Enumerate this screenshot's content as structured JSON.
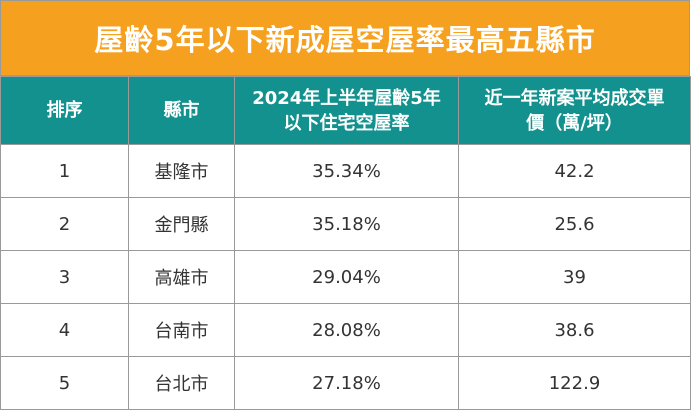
{
  "title": "屋齡5年以下新成屋空屋率最高五縣市",
  "headers": {
    "rank": "排序",
    "county": "縣市",
    "vacancy_line1": "2024年上半年屋齡5年",
    "vacancy_line2": "以下住宅空屋率",
    "price_line1": "近一年新案平均成交單",
    "price_line2": "價（萬/坪）"
  },
  "rows": [
    {
      "rank": "1",
      "county": "基隆市",
      "vacancy": "35.34%",
      "price": "42.2"
    },
    {
      "rank": "2",
      "county": "金門縣",
      "vacancy": "35.18%",
      "price": "25.6"
    },
    {
      "rank": "3",
      "county": "高雄市",
      "vacancy": "29.04%",
      "price": "39"
    },
    {
      "rank": "4",
      "county": "台南市",
      "vacancy": "28.08%",
      "price": "38.6"
    },
    {
      "rank": "5",
      "county": "台北市",
      "vacancy": "27.18%",
      "price": "122.9"
    }
  ],
  "colors": {
    "title_bg": "#f5a11f",
    "header_bg": "#12918e"
  }
}
